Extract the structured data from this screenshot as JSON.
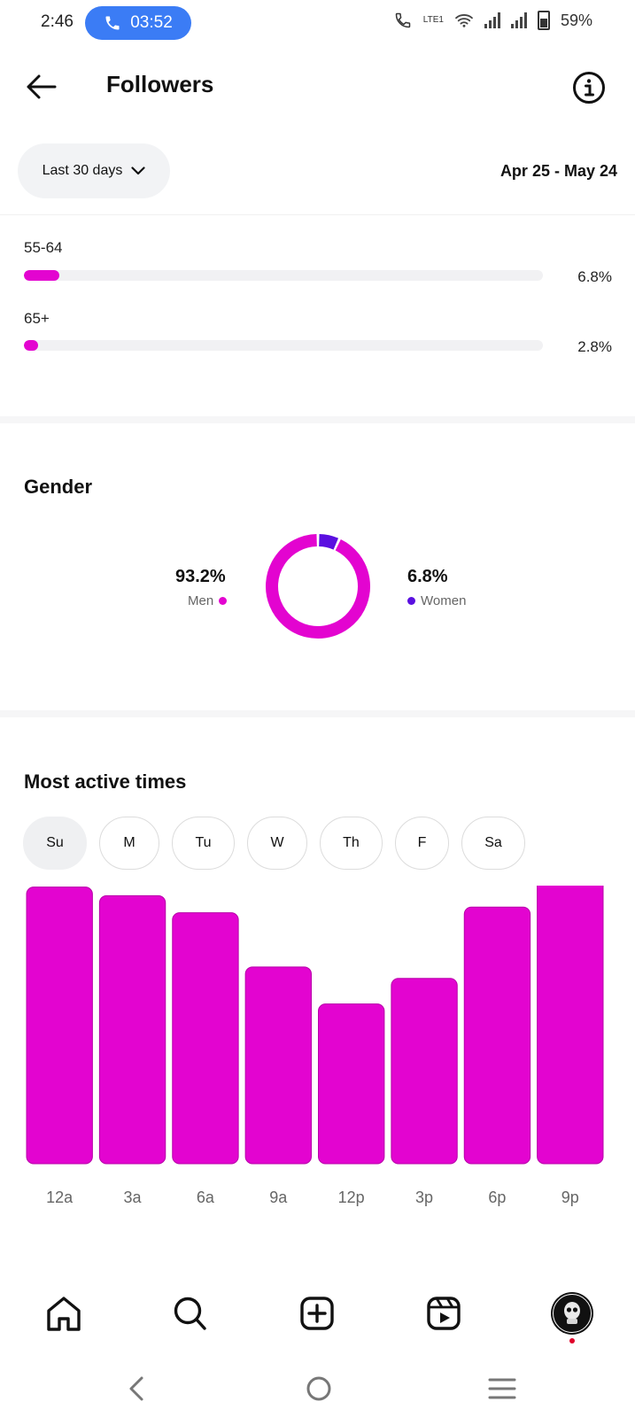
{
  "status_bar": {
    "time": "2:46",
    "call_duration": "03:52",
    "battery": "59%",
    "network_label": "LTE1"
  },
  "header": {
    "title": "Followers",
    "back_icon": "arrow-left-icon",
    "info_icon": "info-icon"
  },
  "filters": {
    "range_label": "Last 30 days",
    "date_range": "Apr 25 - May 24"
  },
  "age_groups": [
    {
      "label": "55-64",
      "percent_text": "6.8%",
      "fraction": 0.068
    },
    {
      "label": "65+",
      "percent_text": "2.8%",
      "fraction": 0.028
    }
  ],
  "gender": {
    "title": "Gender",
    "men": {
      "percent": "93.2%",
      "label": "Men",
      "value": 93.2,
      "color": "#e304d0"
    },
    "women": {
      "percent": "6.8%",
      "label": "Women",
      "value": 6.8,
      "color": "#5a0fe0"
    }
  },
  "active_times": {
    "title": "Most active times",
    "days": [
      "Su",
      "M",
      "Tu",
      "W",
      "Th",
      "F",
      "Sa"
    ],
    "selected_day": "Su"
  },
  "chart_data": {
    "type": "bar",
    "categories": [
      "12a",
      "3a",
      "6a",
      "9a",
      "12p",
      "3p",
      "6p",
      "9p"
    ],
    "values": [
      97,
      94,
      88,
      69,
      56,
      65,
      90,
      100
    ],
    "ylim": [
      0,
      100
    ],
    "color": "#e304d0"
  },
  "bottom_nav": {
    "items": [
      "home-icon",
      "search-icon",
      "create-icon",
      "reels-icon",
      "profile-avatar"
    ]
  },
  "colors": {
    "accent": "#e304d0",
    "secondary": "#5a0fe0",
    "call_pill": "#3b7cf5"
  }
}
